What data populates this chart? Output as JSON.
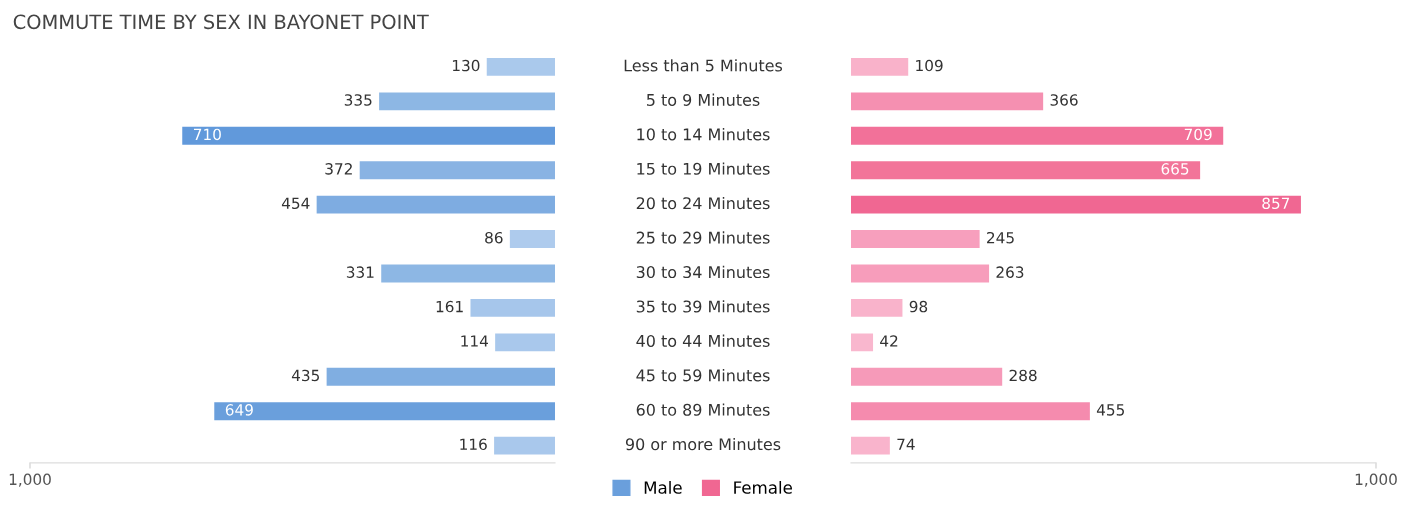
{
  "chart_data": [
    {
      "type": "bar",
      "orientation": "horizontal",
      "title": "COMMUTE TIME BY SEX IN BAYONET POINT",
      "categories": [
        "Less than 5 Minutes",
        "5 to 9 Minutes",
        "10 to 14 Minutes",
        "15 to 19 Minutes",
        "20 to 24 Minutes",
        "25 to 29 Minutes",
        "30 to 34 Minutes",
        "35 to 39 Minutes",
        "40 to 44 Minutes",
        "45 to 59 Minutes",
        "60 to 89 Minutes",
        "90 or more Minutes"
      ],
      "series": [
        {
          "name": "Male",
          "color": "#6a9fdc",
          "values": [
            130,
            335,
            710,
            372,
            454,
            86,
            331,
            161,
            114,
            435,
            649,
            116
          ],
          "colors": [
            "#aac9ec",
            "#8db7e4",
            "#6199db",
            "#89b3e3",
            "#7eace1",
            "#aecbed",
            "#8db7e4",
            "#a6c6eb",
            "#a9c8ec",
            "#80aee1",
            "#6a9fdc",
            "#a9c8ec"
          ]
        }
      ],
      "xlim": [
        1000,
        0
      ],
      "xticks": [
        {
          "value": 1000,
          "label": "1,000"
        }
      ],
      "data_labels": true,
      "grid": false,
      "legend": "bottom"
    },
    {
      "type": "bar",
      "orientation": "horizontal",
      "series": [
        {
          "name": "Female",
          "color": "#f06792",
          "values": [
            109,
            366,
            709,
            665,
            857,
            245,
            263,
            98,
            42,
            288,
            455,
            74
          ],
          "colors": [
            "#f9b2ca",
            "#f590b1",
            "#f27199",
            "#f27499",
            "#f06792",
            "#f79fbd",
            "#f79dbb",
            "#f9b3cb",
            "#f9b7ce",
            "#f69ab9",
            "#f58bae",
            "#f9b4cc"
          ]
        }
      ],
      "xlim": [
        0,
        1000
      ],
      "xticks": [
        {
          "value": 1000,
          "label": "1,000"
        }
      ],
      "data_labels": true,
      "grid": false,
      "legend": "bottom"
    }
  ]
}
